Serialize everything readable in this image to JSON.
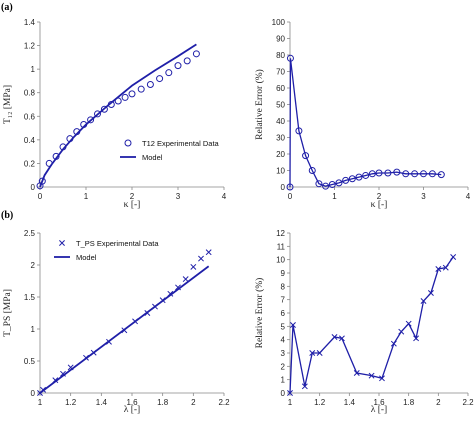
{
  "figure": {
    "panel_a_tag": "(a)",
    "panel_b_tag": "(b)"
  },
  "colors": {
    "series": "#1f1fa8",
    "axis": "#888888"
  },
  "chart_data": [
    {
      "id": "a-left",
      "type": "scatter",
      "xlabel": "κ [-]",
      "ylabel": "T₁₂ [MPa]",
      "xlim": [
        0,
        4
      ],
      "ylim": [
        0,
        1.4
      ],
      "xticks": [
        0,
        1,
        2,
        3,
        4
      ],
      "yticks": [
        0,
        0.2,
        0.4,
        0.6,
        0.8,
        1,
        1.2,
        1.4
      ],
      "grid": false,
      "legend_position": "lower-right",
      "series": [
        {
          "name": "T12 Experimental Data",
          "kind": "markers",
          "marker": "circle",
          "x": [
            0,
            0.05,
            0.2,
            0.35,
            0.5,
            0.65,
            0.8,
            0.95,
            1.1,
            1.25,
            1.4,
            1.55,
            1.7,
            1.85,
            2.0,
            2.2,
            2.4,
            2.6,
            2.8,
            3.0,
            3.2,
            3.4
          ],
          "y": [
            0.01,
            0.05,
            0.2,
            0.26,
            0.34,
            0.41,
            0.47,
            0.53,
            0.57,
            0.62,
            0.66,
            0.7,
            0.73,
            0.76,
            0.79,
            0.83,
            0.87,
            0.92,
            0.97,
            1.03,
            1.07,
            1.13
          ]
        },
        {
          "name": "Model",
          "kind": "line",
          "x": [
            0,
            0.1,
            0.25,
            0.5,
            0.75,
            1.0,
            1.5,
            2.0,
            2.5,
            3.0,
            3.4
          ],
          "y": [
            0,
            0.1,
            0.19,
            0.32,
            0.43,
            0.53,
            0.7,
            0.86,
            0.99,
            1.11,
            1.21
          ]
        }
      ]
    },
    {
      "id": "a-right",
      "type": "line",
      "xlabel": "κ [-]",
      "ylabel": "Relative Error (%)",
      "xlim": [
        0,
        4
      ],
      "ylim": [
        0,
        100
      ],
      "xticks": [
        0,
        1,
        2,
        3,
        4
      ],
      "yticks": [
        0,
        10,
        20,
        30,
        40,
        50,
        60,
        70,
        80,
        90,
        100
      ],
      "grid": false,
      "series": [
        {
          "name": "",
          "kind": "line-markers",
          "marker": "circle",
          "x": [
            0,
            0.01,
            0.2,
            0.35,
            0.5,
            0.65,
            0.8,
            0.95,
            1.1,
            1.25,
            1.4,
            1.55,
            1.7,
            1.85,
            2.0,
            2.2,
            2.4,
            2.6,
            2.8,
            3.0,
            3.2,
            3.4
          ],
          "y": [
            0,
            78,
            34,
            19,
            10,
            2,
            0.5,
            1.5,
            2.5,
            4,
            5,
            6,
            7,
            8,
            8.5,
            8.5,
            9,
            8,
            8,
            8,
            8,
            7.5
          ]
        }
      ]
    },
    {
      "id": "b-left",
      "type": "scatter",
      "xlabel": "λ [-]",
      "ylabel": "T_PS [MPa]",
      "xlim": [
        1,
        2.2
      ],
      "ylim": [
        0,
        2.5
      ],
      "xticks": [
        1,
        1.2,
        1.4,
        1.6,
        1.8,
        2,
        2.2
      ],
      "yticks": [
        0,
        0.5,
        1,
        1.5,
        2,
        2.5
      ],
      "grid": false,
      "legend_position": "top-left",
      "series": [
        {
          "name": "T_PS Experimental Data",
          "kind": "markers",
          "marker": "x",
          "x": [
            1.0,
            1.02,
            1.1,
            1.15,
            1.2,
            1.3,
            1.35,
            1.45,
            1.55,
            1.62,
            1.7,
            1.75,
            1.8,
            1.85,
            1.9,
            1.95,
            2.0,
            2.05,
            2.1
          ],
          "y": [
            0.0,
            0.05,
            0.2,
            0.3,
            0.4,
            0.55,
            0.63,
            0.8,
            0.98,
            1.12,
            1.25,
            1.35,
            1.45,
            1.55,
            1.65,
            1.78,
            1.97,
            2.1,
            2.2
          ]
        },
        {
          "name": "Model",
          "kind": "line",
          "x": [
            1.0,
            2.1
          ],
          "y": [
            0.0,
            1.98
          ]
        }
      ]
    },
    {
      "id": "b-right",
      "type": "line",
      "xlabel": "λ [-]",
      "ylabel": "Relative Error (%)",
      "xlim": [
        1,
        2.2
      ],
      "ylim": [
        0,
        12
      ],
      "xticks": [
        1,
        1.2,
        1.4,
        1.6,
        1.8,
        2,
        2.2
      ],
      "yticks": [
        0,
        1,
        2,
        3,
        4,
        5,
        6,
        7,
        8,
        9,
        10,
        11,
        12
      ],
      "grid": false,
      "series": [
        {
          "name": "",
          "kind": "line-markers",
          "marker": "x",
          "x": [
            1.0,
            1.02,
            1.1,
            1.15,
            1.2,
            1.3,
            1.35,
            1.45,
            1.55,
            1.62,
            1.7,
            1.75,
            1.8,
            1.85,
            1.9,
            1.95,
            2.0,
            2.05,
            2.1
          ],
          "y": [
            0.0,
            5.1,
            0.5,
            3.0,
            3.0,
            4.2,
            4.1,
            1.5,
            1.3,
            1.1,
            3.7,
            4.6,
            5.2,
            4.1,
            6.9,
            7.5,
            9.3,
            9.4,
            10.2
          ]
        }
      ]
    }
  ]
}
